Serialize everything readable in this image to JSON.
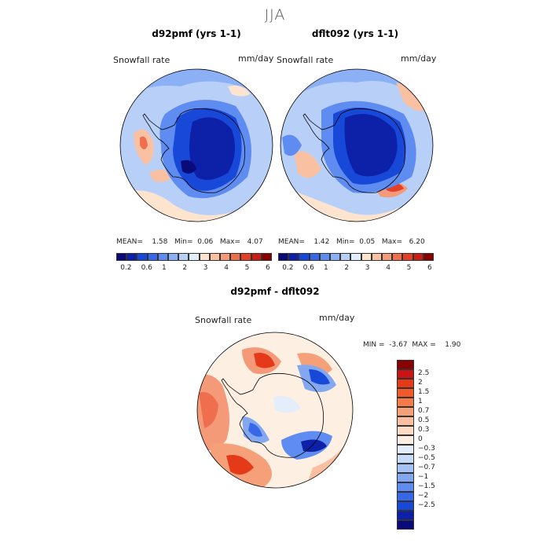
{
  "season": "JJA",
  "panel_left": {
    "title": "d92pmf (yrs 1-1)",
    "variable": "Snowfall rate",
    "units": "mm/day",
    "stats": {
      "mean_label": "MEAN=",
      "mean": "1.58",
      "min_label": "Min=",
      "min": "0.06",
      "max_label": "Max=",
      "max": "4.07"
    }
  },
  "panel_right": {
    "title": "dflt092 (yrs 1-1)",
    "variable": "Snowfall rate",
    "units": "mm/day",
    "stats": {
      "mean_label": "MEAN=",
      "mean": "1.42",
      "min_label": "Min=",
      "min": "0.05",
      "max_label": "Max=",
      "max": "6.20"
    }
  },
  "colorbar_top": {
    "colors": [
      "#0a0a7a",
      "#0c20a8",
      "#1848d8",
      "#3868e8",
      "#5f8cf0",
      "#8cb0f5",
      "#b8d0f8",
      "#e2eefc",
      "#fde4cf",
      "#f9c0a2",
      "#f49a78",
      "#ee6e4e",
      "#e44028",
      "#c81e14",
      "#8a0000"
    ],
    "labels": [
      "0.2",
      "0.6",
      "1",
      "2",
      "3",
      "4",
      "5",
      "6"
    ]
  },
  "panel_diff": {
    "title": "d92pmf - dflt092",
    "variable": "Snowfall rate",
    "units": "mm/day",
    "stats": {
      "min_label": "MIN =",
      "min": "-3.67",
      "max_label": "MAX =",
      "max": "1.90"
    }
  },
  "colorbar_diff": {
    "colors": [
      "#8a0000",
      "#c81414",
      "#e43a1a",
      "#f05a2a",
      "#f47c4a",
      "#f6a07a",
      "#fabfa0",
      "#fcdcc4",
      "#fdf0e2",
      "#e4eefb",
      "#c6dbf8",
      "#a4c2f4",
      "#84a8f0",
      "#5f8cf0",
      "#3868e8",
      "#1848d8",
      "#0c20a8",
      "#0a0a7a"
    ],
    "labels": [
      "2.5",
      "2",
      "1.5",
      "1",
      "0.7",
      "0.5",
      "0.3",
      "0",
      "−0.3",
      "−0.5",
      "−0.7",
      "−1",
      "−1.5",
      "−2",
      "−2.5"
    ]
  }
}
